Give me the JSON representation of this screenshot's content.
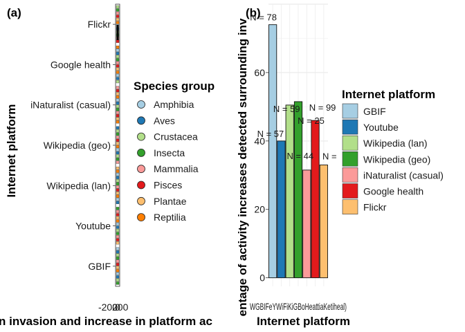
{
  "chart_data": [
    {
      "panel": "(a)",
      "type": "bar",
      "orientation": "horizontal",
      "categories": [
        "GBIF",
        "Youtube",
        "Wikipedia (lan)",
        "Wikipedia (geo)",
        "iNaturalist (casual)",
        "Google health",
        "Flickr"
      ],
      "xlabel": "n invasion and increase in platform ac",
      "ylabel": "Internet platform",
      "x_ticks": [
        "-200",
        "0",
        "200"
      ],
      "legend": {
        "title": "Species group",
        "placement": "right",
        "items": [
          {
            "label": "Amphibia",
            "color": "#A6CEE3"
          },
          {
            "label": "Aves",
            "color": "#1F78B4"
          },
          {
            "label": "Crustacea",
            "color": "#B2DF8A"
          },
          {
            "label": "Insecta",
            "color": "#33A02C"
          },
          {
            "label": "Mammalia",
            "color": "#FB9A99"
          },
          {
            "label": "Pisces",
            "color": "#E31A1C"
          },
          {
            "label": "Plantae",
            "color": "#FDBF6F"
          },
          {
            "label": "Reptilia",
            "color": "#FF7F00"
          }
        ]
      }
    },
    {
      "panel": "(b)",
      "type": "bar",
      "categories": [
        "GBIF",
        "Youtube",
        "Wikipedia (lan)",
        "Wikipedia (geo)",
        "iNaturalist (casual)",
        "Google health",
        "Flickr"
      ],
      "x_tick_text": "WGBIFeYWiFiKiGBoHeattiaKetiheal)",
      "values": [
        74,
        40,
        50.5,
        51.5,
        31.5,
        46,
        33
      ],
      "n_labels": [
        "N = 78",
        "N = 57",
        "N = 59",
        "N = 25",
        "N = 44",
        "N = 99",
        "N = "
      ],
      "colors": [
        "#A6CEE3",
        "#1F78B4",
        "#B2DF8A",
        "#33A02C",
        "#FB9A99",
        "#E31A1C",
        "#FDBF6F"
      ],
      "xlabel": "Internet platform",
      "ylabel": "entage of activity increases detected surrounding inv",
      "ylim": [
        -2.5,
        80
      ],
      "y_ticks": [
        0,
        20,
        40,
        60
      ],
      "grid": true,
      "legend": {
        "title": "Internet platform",
        "placement": "right",
        "items": [
          {
            "label": "GBIF",
            "color": "#A6CEE3"
          },
          {
            "label": "Youtube",
            "color": "#1F78B4"
          },
          {
            "label": "Wikipedia (lan)",
            "color": "#B2DF8A"
          },
          {
            "label": "Wikipedia (geo)",
            "color": "#33A02C"
          },
          {
            "label": "iNaturalist (casual)",
            "color": "#FB9A99"
          },
          {
            "label": "Google health",
            "color": "#E31A1C"
          },
          {
            "label": "Flickr",
            "color": "#FDBF6F"
          }
        ]
      }
    }
  ]
}
